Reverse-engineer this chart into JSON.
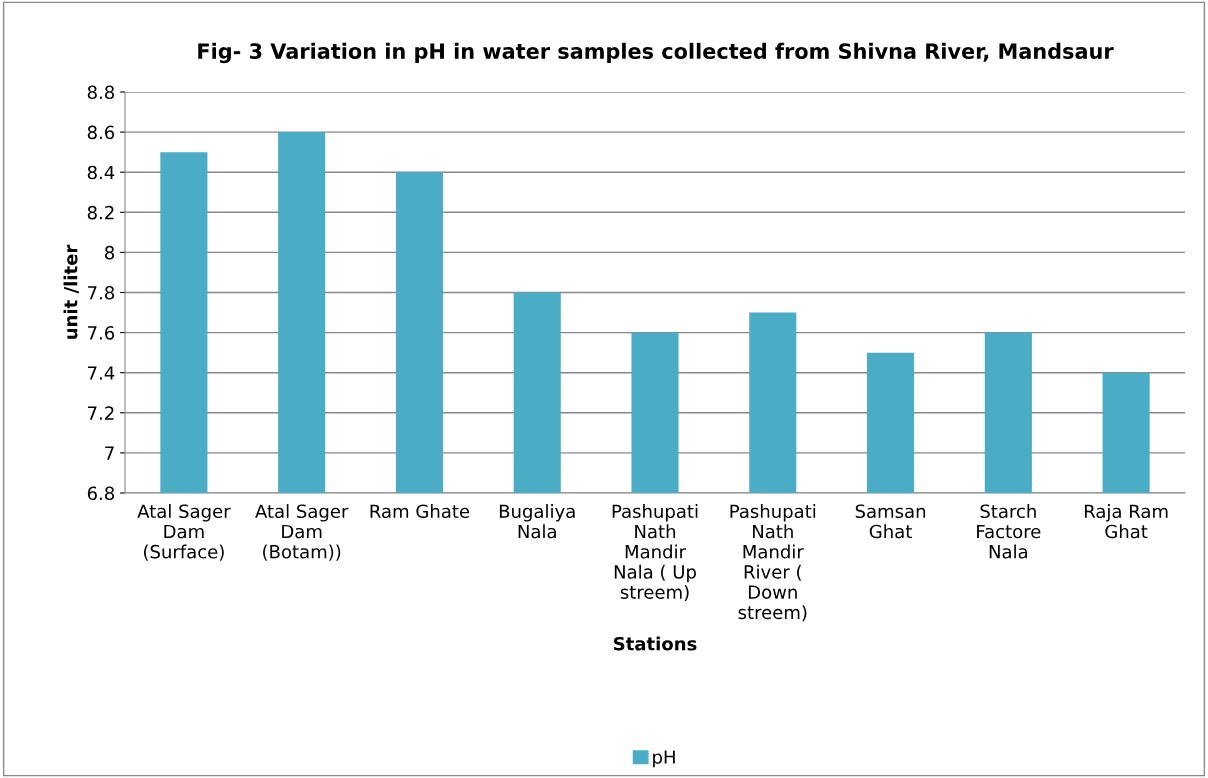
{
  "chart_data": {
    "type": "bar",
    "title": "Fig- 3 Variation in pH in water samples collected from Shivna River, Mandsaur",
    "xlabel": "Stations",
    "ylabel": "unit /liter",
    "categories": [
      "Atal Sager\nDam\n(Surface)",
      "Atal Sager\nDam\n(Botam))",
      "Ram Ghate",
      "Bugaliya\nNala",
      "Pashupati\nNath\nMandir\nNala ( Up\nstreem)",
      "Pashupati\nNath\nMandir\nRiver (\nDown\nstreem)",
      "Samsan\nGhat",
      "Starch\nFactore\nNala",
      "Raja Ram\nGhat"
    ],
    "series": [
      {
        "name": "pH",
        "color": "#4bacc6",
        "values": [
          8.5,
          8.6,
          8.4,
          7.8,
          7.6,
          7.7,
          7.5,
          7.6,
          7.4
        ]
      }
    ],
    "ylim": [
      6.8,
      8.8
    ],
    "yticks": [
      6.8,
      7,
      7.2,
      7.4,
      7.6,
      7.8,
      8,
      8.2,
      8.4,
      8.6,
      8.8
    ],
    "grid": "y",
    "legend": "bottom"
  }
}
